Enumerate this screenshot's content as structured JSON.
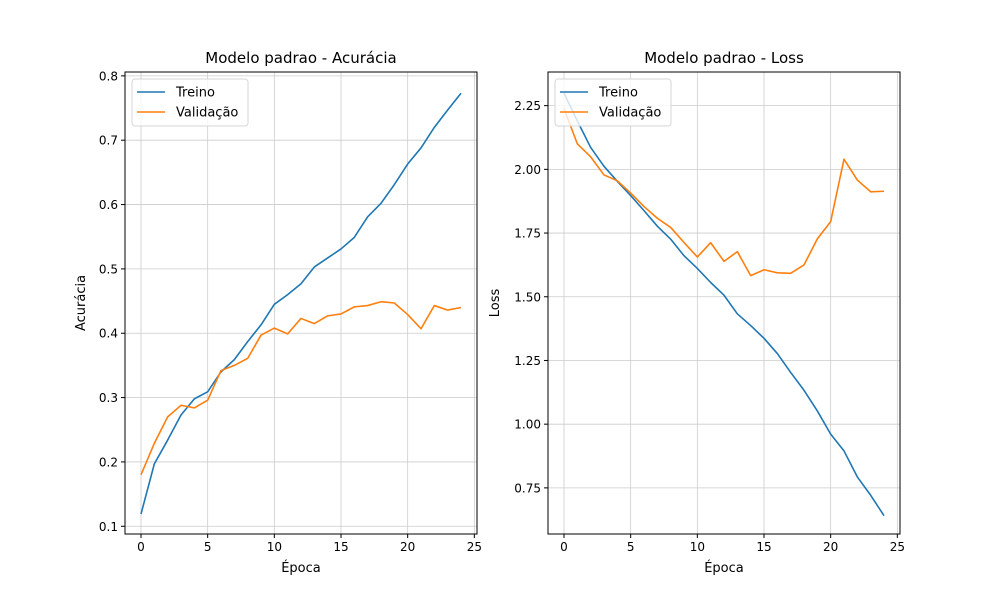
{
  "colors": {
    "train": "#1f77b4",
    "validation": "#ff7f0e",
    "grid": "#cccccc",
    "axis": "#000000"
  },
  "chart_data": [
    {
      "type": "line",
      "title": "Modelo padrao - Acurácia",
      "xlabel": "Época",
      "ylabel": "Acurácia",
      "xlim": [
        -1.2,
        25.2
      ],
      "ylim": [
        0.088,
        0.806
      ],
      "xticks": [
        0,
        5,
        10,
        15,
        20,
        25
      ],
      "yticks": [
        0.1,
        0.2,
        0.3,
        0.4,
        0.5,
        0.6,
        0.7,
        0.8
      ],
      "ytick_labels": [
        "0.1",
        "0.2",
        "0.3",
        "0.4",
        "0.5",
        "0.6",
        "0.7",
        "0.8"
      ],
      "grid": true,
      "legend_position": "top-left",
      "x": [
        0,
        1,
        2,
        3,
        4,
        5,
        6,
        7,
        8,
        9,
        10,
        11,
        12,
        13,
        14,
        15,
        16,
        17,
        18,
        19,
        20,
        21,
        22,
        23,
        24
      ],
      "series": [
        {
          "name": "Treino",
          "color_key": "train",
          "values": [
            0.119,
            0.197,
            0.234,
            0.273,
            0.298,
            0.309,
            0.34,
            0.359,
            0.387,
            0.413,
            0.445,
            0.46,
            0.477,
            0.503,
            0.517,
            0.531,
            0.549,
            0.581,
            0.602,
            0.631,
            0.663,
            0.688,
            0.72,
            0.747,
            0.773
          ]
        },
        {
          "name": "Validação",
          "color_key": "validation",
          "values": [
            0.18,
            0.229,
            0.27,
            0.288,
            0.284,
            0.296,
            0.342,
            0.35,
            0.361,
            0.397,
            0.408,
            0.399,
            0.423,
            0.415,
            0.427,
            0.43,
            0.441,
            0.443,
            0.449,
            0.447,
            0.429,
            0.407,
            0.443,
            0.436,
            0.44
          ]
        }
      ]
    },
    {
      "type": "line",
      "title": "Modelo padrao - Loss",
      "xlabel": "Época",
      "ylabel": "Loss",
      "xlim": [
        -1.2,
        25.2
      ],
      "ylim": [
        0.569,
        2.382
      ],
      "xticks": [
        0,
        5,
        10,
        15,
        20,
        25
      ],
      "yticks": [
        0.75,
        1.0,
        1.25,
        1.5,
        1.75,
        2.0,
        2.25
      ],
      "ytick_labels": [
        "0.75",
        "1.00",
        "1.25",
        "1.50",
        "1.75",
        "2.00",
        "2.25"
      ],
      "grid": true,
      "legend_position": "top-left",
      "x": [
        0,
        1,
        2,
        3,
        4,
        5,
        6,
        7,
        8,
        9,
        10,
        11,
        12,
        13,
        14,
        15,
        16,
        17,
        18,
        19,
        20,
        21,
        22,
        23,
        24
      ],
      "series": [
        {
          "name": "Treino",
          "color_key": "train",
          "values": [
            2.299,
            2.19,
            2.086,
            2.012,
            1.953,
            1.897,
            1.838,
            1.777,
            1.726,
            1.661,
            1.611,
            1.556,
            1.506,
            1.433,
            1.387,
            1.337,
            1.277,
            1.203,
            1.133,
            1.052,
            0.961,
            0.895,
            0.793,
            0.721,
            0.641
          ]
        },
        {
          "name": "Validação",
          "color_key": "validation",
          "values": [
            2.239,
            2.1,
            2.049,
            1.978,
            1.955,
            1.907,
            1.854,
            1.808,
            1.772,
            1.713,
            1.656,
            1.712,
            1.639,
            1.677,
            1.583,
            1.606,
            1.594,
            1.592,
            1.625,
            1.727,
            1.795,
            2.04,
            1.958,
            1.912,
            1.914
          ]
        }
      ]
    }
  ]
}
